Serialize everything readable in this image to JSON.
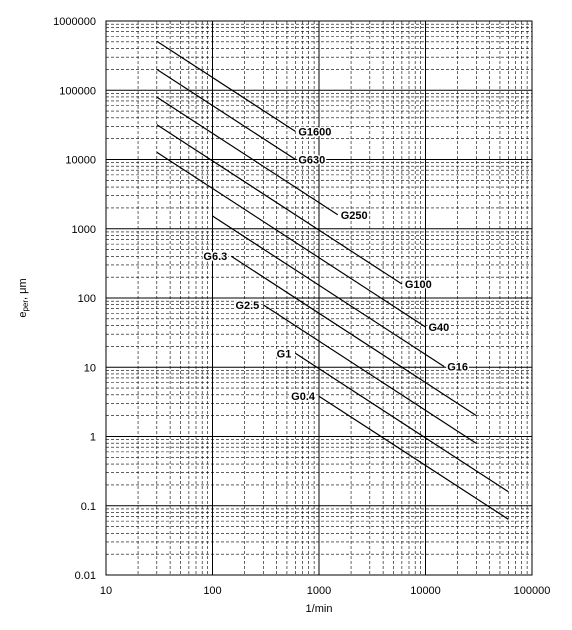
{
  "chart_data": {
    "type": "line",
    "y_label_parts": [
      "e",
      "per",
      ", μm"
    ],
    "x_label": "1/min",
    "x_scale": "log",
    "y_scale": "log",
    "grid": true,
    "xlim": [
      10,
      100000
    ],
    "xticks": [
      10,
      100,
      1000,
      10000,
      100000
    ],
    "ylim": [
      0.01,
      1000000
    ],
    "yticks": [
      0.01,
      0.1,
      1,
      10,
      100,
      1000,
      10000,
      100000,
      1000000
    ],
    "series": [
      {
        "name": "G1600",
        "color": "#000000",
        "label_position": "end",
        "x": [
          30,
          600
        ],
        "values": [
          509280,
          25464
        ]
      },
      {
        "name": "G630",
        "color": "#000000",
        "label_position": "end",
        "x": [
          30,
          600
        ],
        "values": [
          200529,
          10026
        ]
      },
      {
        "name": "G250",
        "color": "#000000",
        "label_position": "end",
        "x": [
          30,
          1500
        ],
        "values": [
          79575,
          1591.5
        ]
      },
      {
        "name": "G100",
        "color": "#000000",
        "label_position": "end",
        "x": [
          30,
          6000
        ],
        "values": [
          31830,
          159.15
        ]
      },
      {
        "name": "G40",
        "color": "#000000",
        "label_position": "end",
        "x": [
          30,
          10000
        ],
        "values": [
          12732,
          38.2
        ]
      },
      {
        "name": "G16",
        "color": "#000000",
        "label_position": "end",
        "x": [
          100,
          15000
        ],
        "values": [
          1528,
          10.19
        ]
      },
      {
        "name": "G6.3",
        "color": "#000000",
        "label_position": "start",
        "x": [
          150,
          30000
        ],
        "values": [
          401,
          2.005
        ]
      },
      {
        "name": "G2.5",
        "color": "#000000",
        "label_position": "start",
        "x": [
          300,
          30000
        ],
        "values": [
          79.6,
          0.796
        ]
      },
      {
        "name": "G1",
        "color": "#000000",
        "label_position": "start",
        "x": [
          600,
          60000
        ],
        "values": [
          15.9,
          0.159
        ]
      },
      {
        "name": "G0.4",
        "color": "#000000",
        "label_position": "start",
        "x": [
          1000,
          60000
        ],
        "values": [
          3.82,
          0.0637
        ]
      }
    ]
  }
}
